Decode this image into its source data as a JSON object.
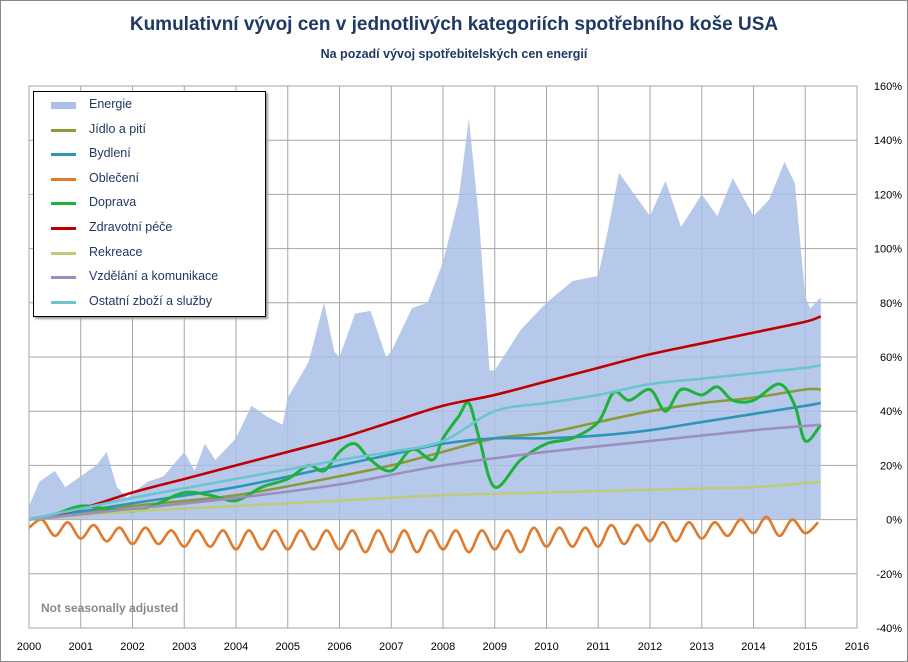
{
  "chart_data": {
    "type": "line",
    "title": "Kumulativní vývoj cen v jednotlivých kategoriích spotřebního koše USA",
    "subtitle": "Na pozadí vývoj spotřebitelských cen energií",
    "note": "Not seasonally adjusted",
    "xlim": [
      2000,
      2016
    ],
    "ylim": [
      -40,
      160
    ],
    "x_ticks": [
      "2000",
      "2001",
      "2002",
      "2003",
      "2004",
      "2005",
      "2006",
      "2007",
      "2008",
      "2009",
      "2010",
      "2011",
      "2012",
      "2013",
      "2014",
      "2015",
      "2016"
    ],
    "y_ticks": [
      "160%",
      "140%",
      "120%",
      "100%",
      "80%",
      "60%",
      "40%",
      "20%",
      "0%",
      "-20%",
      "-40%"
    ],
    "y_tick_values": [
      160,
      140,
      120,
      100,
      80,
      60,
      40,
      20,
      0,
      -20,
      -40
    ],
    "grid": true,
    "legend_position": "top-left",
    "series": [
      {
        "name": "Energie",
        "kind": "area",
        "color": "#aac0e8",
        "x": [
          2000,
          2000.2,
          2000.5,
          2000.7,
          2001,
          2001.3,
          2001.5,
          2001.7,
          2001.9,
          2002,
          2002.3,
          2002.6,
          2003,
          2003.2,
          2003.4,
          2003.6,
          2004,
          2004.3,
          2004.6,
          2004.9,
          2005,
          2005.4,
          2005.7,
          2005.9,
          2006,
          2006.3,
          2006.6,
          2006.9,
          2007,
          2007.4,
          2007.7,
          2008,
          2008.3,
          2008.5,
          2008.7,
          2008.9,
          2009,
          2009.5,
          2010,
          2010.5,
          2011,
          2011.2,
          2011.4,
          2011.7,
          2012,
          2012.3,
          2012.6,
          2013,
          2013.3,
          2013.6,
          2014,
          2014.3,
          2014.6,
          2014.8,
          2015,
          2015.1,
          2015.3
        ],
        "y": [
          5,
          14,
          18,
          12,
          16,
          20,
          25,
          12,
          8,
          10,
          14,
          16,
          25,
          18,
          28,
          22,
          30,
          42,
          38,
          35,
          45,
          58,
          80,
          62,
          60,
          76,
          77,
          60,
          62,
          78,
          80,
          95,
          118,
          148,
          110,
          55,
          55,
          70,
          80,
          88,
          90,
          108,
          128,
          120,
          112,
          125,
          108,
          120,
          112,
          126,
          112,
          118,
          132,
          124,
          82,
          78,
          82
        ]
      },
      {
        "name": "Jídlo a pití",
        "color": "#8a9a3a",
        "x": [
          2000,
          2002,
          2004,
          2006,
          2007,
          2008,
          2009,
          2010,
          2011,
          2012,
          2013,
          2014,
          2015,
          2015.3
        ],
        "y": [
          0,
          5,
          9,
          16,
          20,
          25,
          30,
          32,
          36,
          40,
          43,
          45,
          48,
          48
        ]
      },
      {
        "name": "Bydlení",
        "color": "#2e95b8",
        "x": [
          2000,
          2002,
          2004,
          2006,
          2007,
          2008,
          2009,
          2010,
          2011,
          2012,
          2013,
          2014,
          2015,
          2015.3
        ],
        "y": [
          0,
          6,
          12,
          20,
          24,
          28,
          30,
          30,
          31,
          33,
          36,
          39,
          42,
          43
        ]
      },
      {
        "name": "Oblečení",
        "color": "#e07a2c",
        "x": [
          2000,
          2000.25,
          2000.5,
          2000.75,
          2001,
          2001.25,
          2001.5,
          2001.75,
          2002,
          2002.25,
          2002.5,
          2002.75,
          2003,
          2003.25,
          2003.5,
          2003.75,
          2004,
          2004.25,
          2004.5,
          2004.75,
          2005,
          2005.25,
          2005.5,
          2005.75,
          2006,
          2006.25,
          2006.5,
          2006.75,
          2007,
          2007.25,
          2007.5,
          2007.75,
          2008,
          2008.25,
          2008.5,
          2008.75,
          2009,
          2009.25,
          2009.5,
          2009.75,
          2010,
          2010.25,
          2010.5,
          2010.75,
          2011,
          2011.25,
          2011.5,
          2011.75,
          2012,
          2012.25,
          2012.5,
          2012.75,
          2013,
          2013.25,
          2013.5,
          2013.75,
          2014,
          2014.25,
          2014.5,
          2014.75,
          2015,
          2015.25
        ],
        "y": [
          -3,
          0,
          -6,
          -1,
          -7,
          -2,
          -8,
          -3,
          -9,
          -3,
          -9,
          -4,
          -10,
          -4,
          -10,
          -4,
          -11,
          -4,
          -11,
          -4,
          -11,
          -4,
          -11,
          -4,
          -11,
          -4,
          -12,
          -4,
          -12,
          -4,
          -12,
          -4,
          -11,
          -4,
          -12,
          -4,
          -11,
          -4,
          -12,
          -3,
          -10,
          -3,
          -10,
          -3,
          -10,
          -2,
          -9,
          -2,
          -8,
          -1,
          -8,
          -1,
          -7,
          -1,
          -6,
          0,
          -5,
          1,
          -6,
          0,
          -5,
          -1
        ]
      },
      {
        "name": "Doprava",
        "color": "#1db33a",
        "x": [
          2000,
          2000.5,
          2001,
          2001.5,
          2002,
          2002.5,
          2003,
          2003.5,
          2004,
          2004.5,
          2005,
          2005.4,
          2005.7,
          2006,
          2006.3,
          2006.6,
          2007,
          2007.4,
          2007.8,
          2008,
          2008.3,
          2008.5,
          2008.7,
          2009,
          2009.5,
          2010,
          2010.5,
          2011,
          2011.3,
          2011.6,
          2012,
          2012.3,
          2012.6,
          2013,
          2013.3,
          2013.6,
          2014,
          2014.5,
          2014.8,
          2015,
          2015.3
        ],
        "y": [
          0,
          2,
          5,
          4,
          3,
          6,
          10,
          9,
          7,
          12,
          15,
          20,
          18,
          25,
          28,
          22,
          18,
          26,
          22,
          30,
          38,
          43,
          30,
          12,
          22,
          28,
          30,
          36,
          47,
          44,
          48,
          40,
          48,
          46,
          49,
          44,
          44,
          50,
          42,
          29,
          35
        ]
      },
      {
        "name": "Zdravotní péče",
        "color": "#c00000",
        "x": [
          2000,
          2001,
          2002,
          2003,
          2004,
          2005,
          2006,
          2007,
          2008,
          2009,
          2010,
          2011,
          2012,
          2013,
          2014,
          2015,
          2015.3
        ],
        "y": [
          0,
          4,
          10,
          15,
          20,
          25,
          30,
          36,
          42,
          46,
          51,
          56,
          61,
          65,
          69,
          73,
          75
        ]
      },
      {
        "name": "Rekreace",
        "color": "#bccc7a",
        "x": [
          2000,
          2002,
          2004,
          2006,
          2008,
          2010,
          2012,
          2014,
          2015.3
        ],
        "y": [
          0,
          3,
          5,
          7,
          9,
          10,
          11,
          12,
          14
        ]
      },
      {
        "name": "Vzdělání a komunikace",
        "color": "#9a8fbf",
        "x": [
          2000,
          2002,
          2004,
          2006,
          2008,
          2010,
          2012,
          2014,
          2015.3
        ],
        "y": [
          0,
          4,
          8,
          13,
          20,
          25,
          29,
          33,
          35
        ]
      },
      {
        "name": "Ostatní zboží a služby",
        "color": "#6cc4d0",
        "x": [
          2000,
          2002,
          2004,
          2006,
          2007,
          2008,
          2009,
          2010,
          2011,
          2012,
          2013,
          2014,
          2015,
          2015.3
        ],
        "y": [
          0,
          8,
          15,
          22,
          25,
          29,
          40,
          43,
          46,
          50,
          52,
          54,
          56,
          57
        ]
      }
    ]
  }
}
